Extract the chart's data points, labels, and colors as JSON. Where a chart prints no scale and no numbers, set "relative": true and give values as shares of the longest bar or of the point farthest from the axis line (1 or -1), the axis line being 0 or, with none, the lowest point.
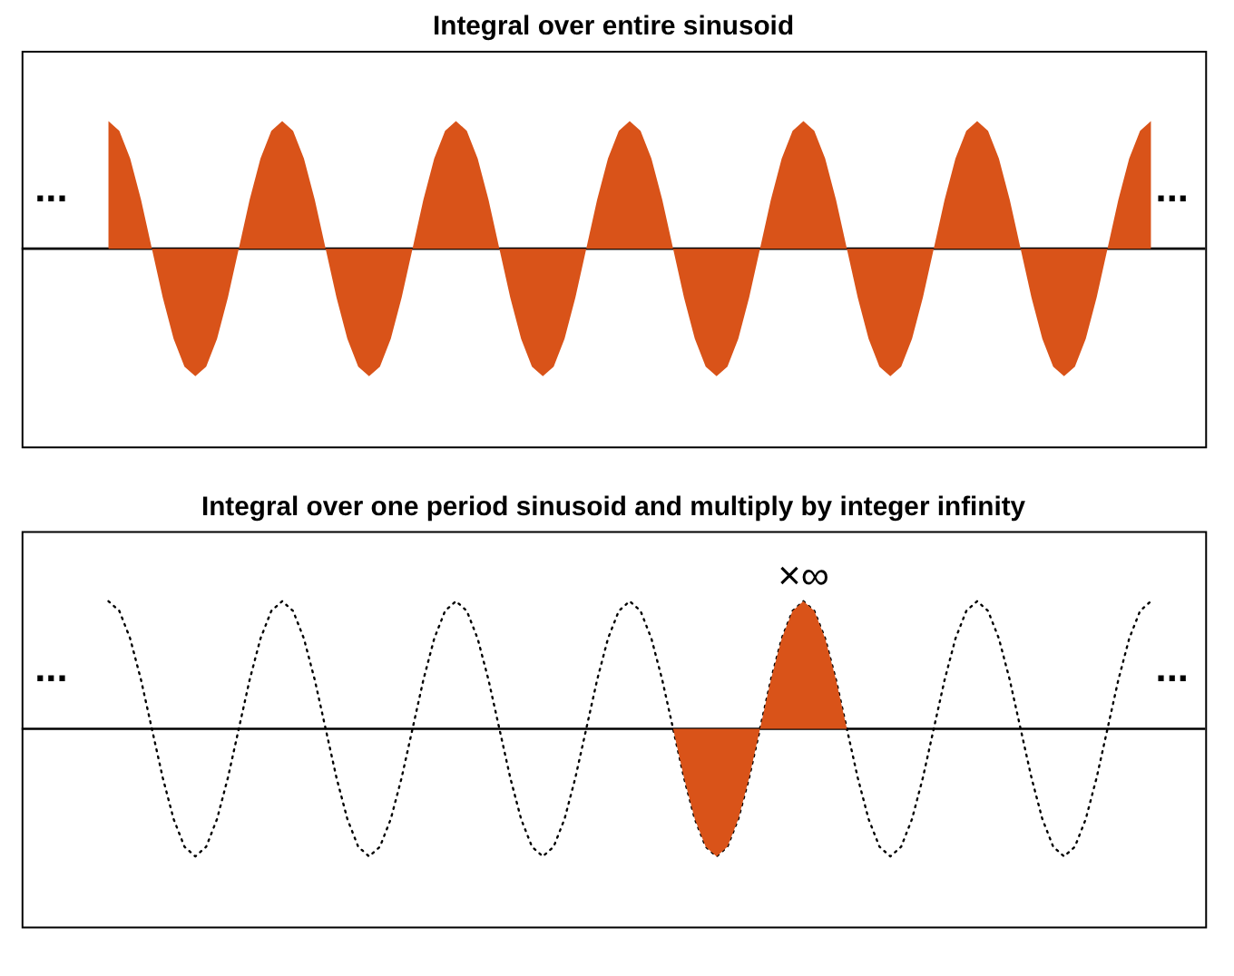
{
  "chart_data": [
    {
      "type": "area",
      "title": "Integral over entire sinusoid",
      "relative": true,
      "annotations": [
        "...",
        "..."
      ],
      "categories": [
        null,
        null,
        null,
        null,
        null,
        null,
        null,
        null,
        null,
        null,
        null,
        null,
        null,
        null,
        null,
        null,
        null,
        null,
        null,
        null,
        null,
        null,
        null,
        null,
        null,
        null,
        null,
        null,
        null,
        null,
        null,
        null,
        null,
        null,
        null,
        null,
        null,
        null,
        null,
        null,
        null,
        null,
        null,
        null,
        null,
        null,
        null,
        null,
        null,
        null,
        null,
        null,
        null,
        null,
        null,
        null,
        null,
        null,
        null,
        null,
        null,
        null,
        null,
        null,
        null,
        null,
        null,
        null,
        null,
        null,
        null,
        null,
        null,
        null,
        null,
        null,
        null,
        null,
        null,
        null,
        null,
        null,
        null,
        null,
        null,
        null,
        null,
        null,
        null,
        null,
        null,
        null,
        null,
        null,
        null,
        null,
        null,
        null,
        null,
        null,
        null,
        null,
        null,
        null,
        null,
        null,
        null,
        null,
        null,
        null
      ],
      "series": [
        {
          "color": "#d95319",
          "values": [
            null,
            null,
            null,
            null,
            null,
            null,
            null,
            null,
            1,
            0.924,
            0.707,
            0.383,
            0,
            -0.383,
            -0.707,
            -0.924,
            -1,
            -0.924,
            -0.707,
            -0.383,
            0,
            0.383,
            0.707,
            0.924,
            1,
            0.924,
            0.707,
            0.383,
            0,
            -0.383,
            -0.707,
            -0.924,
            -1,
            -0.924,
            -0.707,
            -0.383,
            0,
            0.383,
            0.707,
            0.924,
            1,
            0.924,
            0.707,
            0.383,
            0,
            -0.383,
            -0.707,
            -0.924,
            -1,
            -0.924,
            -0.707,
            -0.383,
            0,
            0.383,
            0.707,
            0.924,
            1,
            0.924,
            0.707,
            0.383,
            0,
            -0.383,
            -0.707,
            -0.924,
            -1,
            -0.924,
            -0.707,
            -0.383,
            0,
            0.383,
            0.707,
            0.924,
            1,
            0.924,
            0.707,
            0.383,
            0,
            -0.383,
            -0.707,
            -0.924,
            -1,
            -0.924,
            -0.707,
            -0.383,
            0,
            0.383,
            0.707,
            0.924,
            1,
            0.924,
            0.707,
            0.383,
            0,
            -0.383,
            -0.707,
            -0.924,
            -1,
            -0.924,
            -0.707,
            -0.383,
            0,
            0.383,
            0.707,
            0.924,
            1,
            null,
            null,
            null,
            null,
            null
          ]
        }
      ]
    },
    {
      "type": "area",
      "title": "Integral over one period sinusoid and multiply by integer infinity",
      "relative": true,
      "annotations": [
        "...",
        "...",
        {
          "text": "×∞",
          "y": 1
        }
      ],
      "categories": [
        null,
        null,
        null,
        null,
        null,
        null,
        null,
        null,
        null,
        null,
        null,
        null,
        null,
        null,
        null,
        null,
        null,
        null,
        null,
        null,
        null,
        null,
        null,
        null,
        null,
        null,
        null,
        null,
        null,
        null,
        null,
        null,
        null,
        null,
        null,
        null,
        null,
        null,
        null,
        null,
        null,
        null,
        null,
        null,
        null,
        null,
        null,
        null,
        null,
        null,
        null,
        null,
        null,
        null,
        null,
        null,
        null,
        null,
        null,
        null,
        null,
        null,
        null,
        null,
        null,
        null,
        null,
        null,
        null,
        null,
        null,
        null,
        null,
        null,
        null,
        null,
        null,
        null,
        null,
        null,
        null,
        null,
        null,
        null,
        null,
        null,
        null,
        null,
        null,
        null,
        null,
        null,
        null,
        null,
        null,
        null,
        null,
        null,
        null,
        null,
        null,
        null,
        null,
        null,
        null,
        null,
        null,
        null,
        null,
        null
      ],
      "series": [
        {
          "type": "line",
          "color": "#000000",
          "line_style": "dotted",
          "values": [
            null,
            null,
            null,
            null,
            null,
            null,
            null,
            null,
            1,
            0.924,
            0.707,
            0.383,
            0,
            -0.383,
            -0.707,
            -0.924,
            -1,
            -0.924,
            -0.707,
            -0.383,
            0,
            0.383,
            0.707,
            0.924,
            1,
            0.924,
            0.707,
            0.383,
            0,
            -0.383,
            -0.707,
            -0.924,
            -1,
            -0.924,
            -0.707,
            -0.383,
            0,
            0.383,
            0.707,
            0.924,
            1,
            0.924,
            0.707,
            0.383,
            0,
            -0.383,
            -0.707,
            -0.924,
            -1,
            -0.924,
            -0.707,
            -0.383,
            0,
            0.383,
            0.707,
            0.924,
            1,
            0.924,
            0.707,
            0.383,
            0,
            -0.383,
            -0.707,
            -0.924,
            -1,
            -0.924,
            -0.707,
            -0.383,
            0,
            0.383,
            0.707,
            0.924,
            1,
            0.924,
            0.707,
            0.383,
            0,
            -0.383,
            -0.707,
            -0.924,
            -1,
            -0.924,
            -0.707,
            -0.383,
            0,
            0.383,
            0.707,
            0.924,
            1,
            0.924,
            0.707,
            0.383,
            0,
            -0.383,
            -0.707,
            -0.924,
            -1,
            -0.924,
            -0.707,
            -0.383,
            0,
            0.383,
            0.707,
            0.924,
            1,
            null,
            null,
            null,
            null,
            null
          ]
        },
        {
          "type": "area",
          "color": "#d95319",
          "values": [
            null,
            null,
            null,
            null,
            null,
            null,
            null,
            null,
            null,
            null,
            null,
            null,
            null,
            null,
            null,
            null,
            null,
            null,
            null,
            null,
            null,
            null,
            null,
            null,
            null,
            null,
            null,
            null,
            null,
            null,
            null,
            null,
            null,
            null,
            null,
            null,
            null,
            null,
            null,
            null,
            null,
            null,
            null,
            null,
            null,
            null,
            null,
            null,
            null,
            null,
            null,
            null,
            null,
            null,
            null,
            null,
            null,
            null,
            null,
            null,
            0,
            -0.383,
            -0.707,
            -0.924,
            -1,
            -0.924,
            -0.707,
            -0.383,
            0,
            0.383,
            0.707,
            0.924,
            1,
            0.924,
            0.707,
            0.383,
            0,
            null,
            null,
            null,
            null,
            null,
            null,
            null,
            null,
            null,
            null,
            null,
            null,
            null,
            null,
            null,
            null,
            null,
            null,
            null,
            null,
            null,
            null,
            null,
            null,
            null,
            null,
            null,
            null,
            null,
            null,
            null,
            null,
            null
          ]
        }
      ]
    }
  ]
}
